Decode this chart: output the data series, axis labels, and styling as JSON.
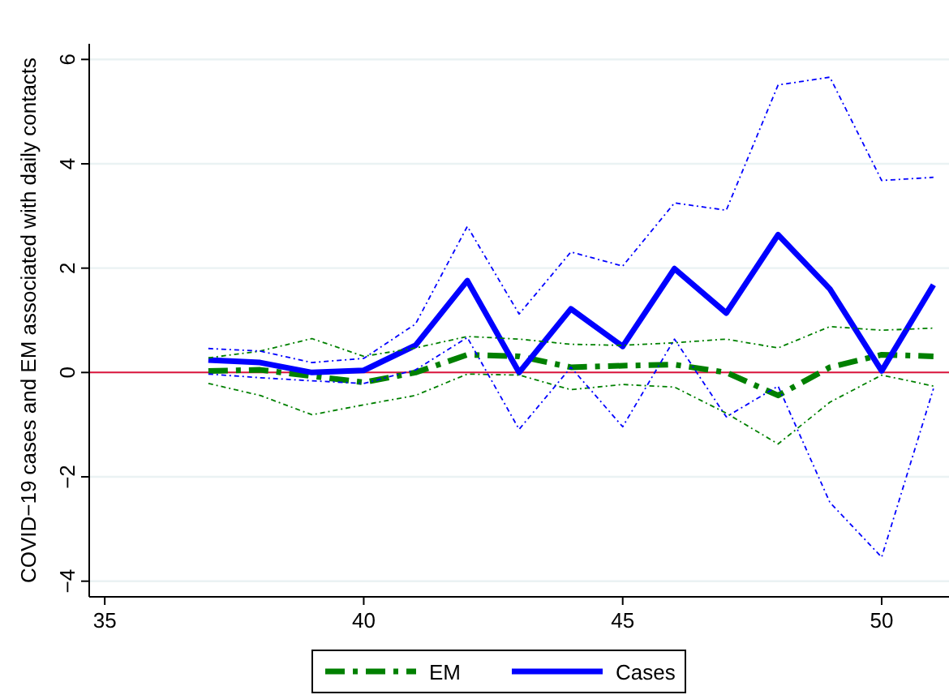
{
  "chart_data": {
    "type": "line",
    "ylabel": "COVID−19 cases and EM associated with daily contacts",
    "x": [
      37,
      38,
      39,
      40,
      41,
      42,
      43,
      44,
      45,
      46,
      47,
      48,
      49,
      50,
      51
    ],
    "series": [
      {
        "name": "EM",
        "color": "#008000",
        "line_style": "dashed",
        "values": [
          0.03,
          0.05,
          -0.07,
          -0.19,
          0,
          0.34,
          0.31,
          0.1,
          0.13,
          0.15,
          0,
          -0.44,
          0.1,
          0.34,
          0.31
        ]
      },
      {
        "name": "Cases",
        "color": "#0000ff",
        "line_style": "solid",
        "values": [
          0.24,
          0.19,
          0,
          0.04,
          0.52,
          1.76,
          0,
          1.22,
          0.5,
          1.99,
          1.14,
          2.64,
          1.6,
          0.03,
          1.68
        ]
      },
      {
        "color": "#008000",
        "line_style": "dotted",
        "values": [
          0.28,
          0.41,
          0.65,
          0.31,
          0.47,
          0.69,
          0.64,
          0.54,
          0.52,
          0.57,
          0.64,
          0.47,
          0.88,
          0.81,
          0.85
        ]
      },
      {
        "color": "#008000",
        "line_style": "dotted",
        "values": [
          -0.21,
          -0.44,
          -0.81,
          -0.62,
          -0.44,
          -0.03,
          -0.05,
          -0.33,
          -0.23,
          -0.28,
          -0.78,
          -1.37,
          -0.57,
          -0.05,
          -0.26
        ]
      },
      {
        "color": "#0000ff",
        "line_style": "dotted",
        "values": [
          0.46,
          0.41,
          0.19,
          0.27,
          0.93,
          2.8,
          1.12,
          2.31,
          2.04,
          3.25,
          3.11,
          5.51,
          5.66,
          3.68,
          3.74
        ]
      },
      {
        "color": "#0000ff",
        "line_style": "dotted",
        "values": [
          -0.03,
          -0.1,
          -0.16,
          -0.21,
          0.05,
          0.67,
          -1.09,
          0.1,
          -1.04,
          0.64,
          -0.85,
          -0.26,
          -2.49,
          -3.54,
          -0.31
        ]
      }
    ],
    "xlim": [
      34.7,
      51.3
    ],
    "xticks": [
      35,
      40,
      45,
      50
    ],
    "ylim": [
      -4.3,
      6.3
    ],
    "yticks": [
      {
        "value": -4,
        "label": "−4"
      },
      {
        "value": -2,
        "label": "−2"
      },
      0,
      2,
      4,
      6
    ],
    "ref_lines": [
      {
        "axis": "y",
        "value": 0,
        "color": "#dc143c"
      }
    ],
    "grid": "y",
    "legend": "bottom"
  }
}
